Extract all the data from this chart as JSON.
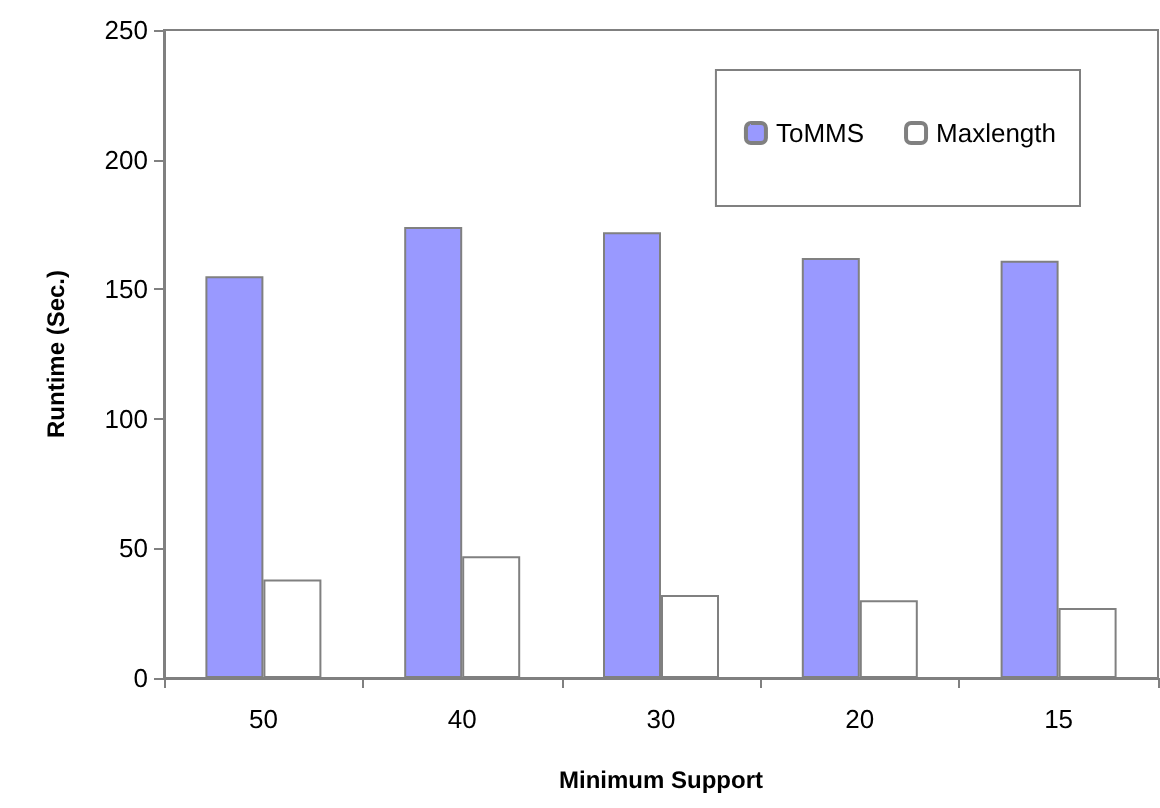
{
  "chart_data": {
    "type": "bar",
    "xlabel": "Minimum Support",
    "ylabel": "Runtime (Sec.)",
    "categories": [
      "50",
      "40",
      "30",
      "20",
      "15"
    ],
    "series": [
      {
        "name": "ToMMS",
        "color": "#9999ff",
        "values": [
          155,
          174,
          172,
          162,
          161
        ]
      },
      {
        "name": "Maxlength",
        "color": "#ffffff",
        "values": [
          38,
          47,
          32,
          30,
          27
        ]
      }
    ],
    "ylim": [
      0,
      250
    ],
    "yticks": [
      0,
      50,
      100,
      150,
      200,
      250
    ],
    "grid": false,
    "legend": "top right"
  }
}
